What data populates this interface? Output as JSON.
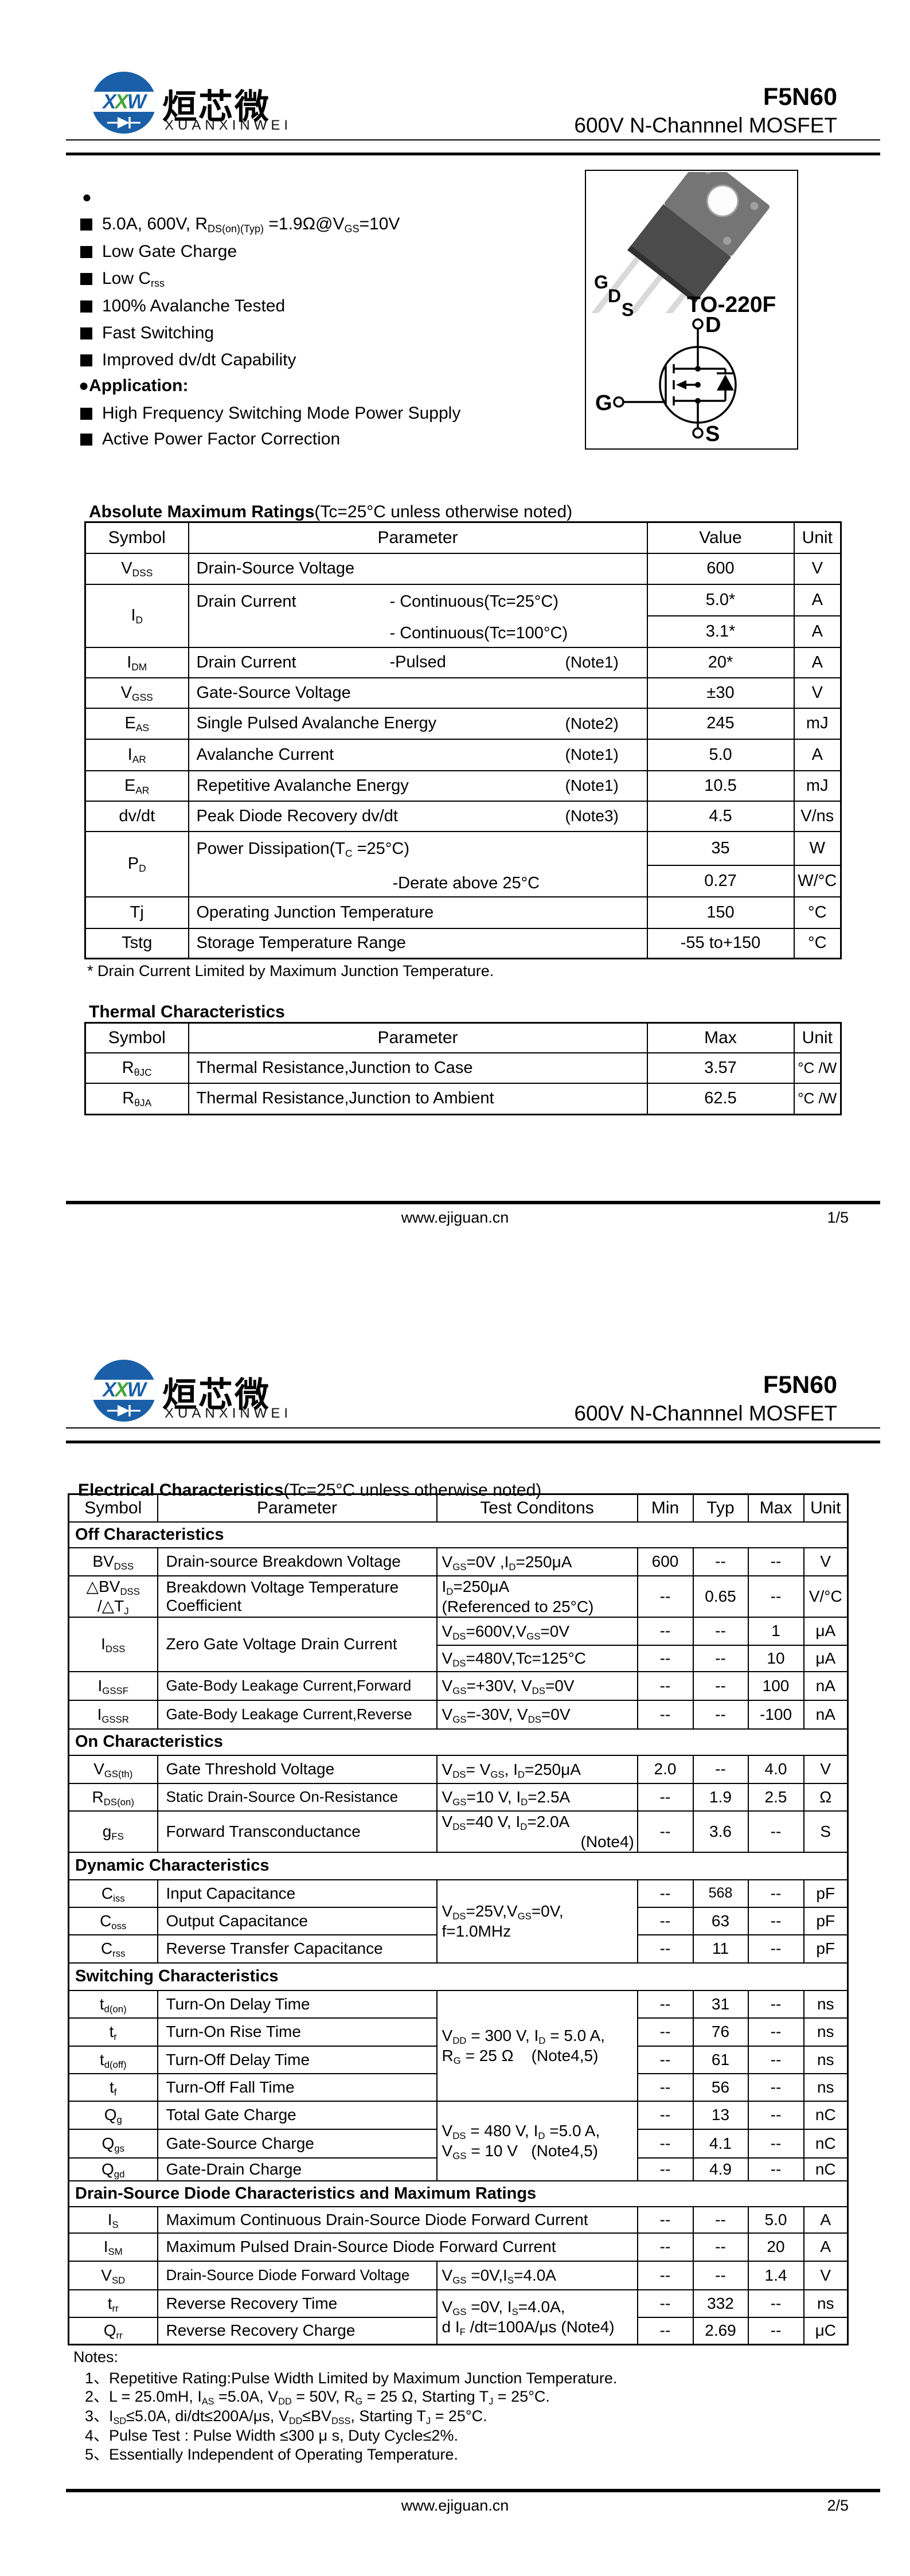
{
  "header": {
    "logo_x1": "X",
    "logo_x2": "X",
    "logo_w": "W",
    "brand_cn": "烜芯微",
    "brand_en": "XUANXINWEI",
    "part_number": "F5N60",
    "subtitle": "600V N-Channnel MOSFET"
  },
  "page1": {
    "features": {
      "lead_bullet": "●",
      "items": [
        "5.0A, 600V, R<sub>DS(on)(Typ)</sub> =1.9Ω@V<sub>GS</sub>=10V",
        "Low Gate Charge",
        "Low C<sub>rss</sub>",
        "100% Avalanche Tested",
        "Fast Switching",
        "Improved dv/dt Capability"
      ],
      "application_label": "●Application:",
      "application_items": [
        "High Frequency Switching Mode Power Supply",
        "Active Power Factor Correction"
      ]
    },
    "package_box": {
      "pin_labels": [
        "G",
        "D",
        "S"
      ],
      "package_name": "TO-220F",
      "symbol": {
        "drain": "D",
        "gate": "G",
        "source": "S"
      }
    },
    "abs_max": {
      "title": "Absolute Maximum Ratings",
      "title_note": "(Tc=25°C unless otherwise noted)",
      "col_headers": [
        "Symbol",
        "Parameter",
        "Value",
        "Unit"
      ],
      "rows": {
        "vdss": {
          "sym": "V<sub>DSS</sub>",
          "param": "Drain-Source Voltage",
          "value": "600",
          "unit": "V"
        },
        "id": {
          "sym": "I<sub>D</sub>",
          "param": "Drain Current",
          "cond1": "- Continuous(Tc=25°C)",
          "cond2": "- Continuous(Tc=100°C)",
          "value1": "5.0*",
          "unit1": "A",
          "value2": "3.1*",
          "unit2": "A"
        },
        "idm": {
          "sym": "I<sub>DM</sub>",
          "param": "Drain Current",
          "cond": "-Pulsed",
          "note": "(Note1)",
          "value": "20*",
          "unit": "A"
        },
        "vgss": {
          "sym": "V<sub>GSS</sub>",
          "param": "Gate-Source Voltage",
          "value": "±30",
          "unit": "V"
        },
        "eas": {
          "sym": "E<sub>AS</sub>",
          "param": "Single Pulsed Avalanche Energy",
          "note": "(Note2)",
          "value": "245",
          "unit": "mJ"
        },
        "iar": {
          "sym": "I<sub>AR</sub>",
          "param": "Avalanche Current",
          "note": "(Note1)",
          "value": "5.0",
          "unit": "A"
        },
        "ear": {
          "sym": "E<sub>AR</sub>",
          "param": "Repetitive Avalanche Energy",
          "note": "(Note1)",
          "value": "10.5",
          "unit": "mJ"
        },
        "dvdt": {
          "sym": "dv/dt",
          "param": "Peak Diode Recovery dv/dt",
          "note": "(Note3)",
          "value": "4.5",
          "unit": "V/ns"
        },
        "pd": {
          "sym": "P<sub>D</sub>",
          "param": "Power Dissipation(T<sub>C</sub> =25°C)",
          "param2": "-Derate above 25°C",
          "value1": "35",
          "unit1": "W",
          "value2": "0.27",
          "unit2": "W/°C"
        },
        "tj": {
          "sym": "Tj",
          "param": "Operating Junction Temperature",
          "value": "150",
          "unit": "°C"
        },
        "tstg": {
          "sym": "Tstg",
          "param": "Storage Temperature Range",
          "value": "-55 to+150",
          "unit": "°C"
        }
      }
    },
    "footnote": "* Drain Current Limited by Maximum Junction Temperature.",
    "thermal": {
      "title": "Thermal Characteristics",
      "col_headers": [
        "Symbol",
        "Parameter",
        "Max",
        "Unit"
      ],
      "rows": {
        "rthjc": {
          "sym": "R<sub>θJC</sub>",
          "param": "Thermal Resistance,Junction to Case",
          "value": "3.57",
          "unit": "°C /W"
        },
        "rthja": {
          "sym": "R<sub>θJA</sub>",
          "param": "Thermal Resistance,Junction to Ambient",
          "value": "62.5",
          "unit": "°C /W"
        }
      }
    },
    "footer": {
      "url": "www.ejiguan.cn",
      "page": "1/5"
    }
  },
  "page2": {
    "electrical": {
      "title": "Electrical Characteristics",
      "title_note": "(Tc=25°C unless otherwise noted)",
      "col_headers": [
        "Symbol",
        "Parameter",
        "Test Conditons",
        "Min",
        "Typ",
        "Max",
        "Unit"
      ],
      "sections": {
        "off": "Off Characteristics",
        "on": "On Characteristics",
        "dynamic": "Dynamic Characteristics",
        "switching": "Switching Characteristics",
        "diode": "Drain-Source Diode Characteristics and Maximum Ratings"
      },
      "rows": {
        "bvdss": {
          "sym": "BV<sub>DSS</sub>",
          "param": "Drain-source Breakdown Voltage",
          "cond": "V<sub>GS</sub>=0V ,I<sub>D</sub>=250μA",
          "min": "600",
          "typ": "--",
          "max": "--",
          "unit": "V"
        },
        "dbvdss": {
          "sym": "△BV<sub>DSS</sub><br>/△T<sub>J</sub>",
          "param": "Breakdown Voltage Temperature<br>Coefficient",
          "cond": "I<sub>D</sub>=250μA<br>(Referenced to 25°C)",
          "min": "--",
          "typ": "0.65",
          "max": "--",
          "unit": "V/°C"
        },
        "idss": {
          "sym": "I<sub>DSS</sub>",
          "param": "Zero Gate Voltage Drain Current",
          "cond1": "V<sub>DS</sub>=600V,V<sub>GS</sub>=0V",
          "min1": "--",
          "typ1": "--",
          "max1": "1",
          "unit1": "μA",
          "cond2": "V<sub>DS</sub>=480V,Tc=125°C",
          "min2": "--",
          "typ2": "--",
          "max2": "10",
          "unit2": "μA"
        },
        "igssf": {
          "sym": "I<sub>GSSF</sub>",
          "param": "Gate-Body Leakage Current,Forward",
          "cond": "V<sub>GS</sub>=+30V, V<sub>DS</sub>=0V",
          "min": "--",
          "typ": "--",
          "max": "100",
          "unit": "nA"
        },
        "igssr": {
          "sym": "I<sub>GSSR</sub>",
          "param": "Gate-Body Leakage Current,Reverse",
          "cond": "V<sub>GS</sub>=-30V, V<sub>DS</sub>=0V",
          "min": "--",
          "typ": "--",
          "max": "-100",
          "unit": "nA"
        },
        "vgsth": {
          "sym": "V<sub>GS(th)</sub>",
          "param": "Gate Threshold Voltage",
          "cond": "V<sub>DS</sub>= V<sub>GS</sub>, I<sub>D</sub>=250μA",
          "min": "2.0",
          "typ": "--",
          "max": "4.0",
          "unit": "V"
        },
        "rdson": {
          "sym": "R<sub>DS(on)</sub>",
          "param": "Static Drain-Source On-Resistance",
          "cond": "V<sub>GS</sub>=10 V, I<sub>D</sub>=2.5A",
          "min": "--",
          "typ": "1.9",
          "max": "2.5",
          "unit": "Ω"
        },
        "gfs": {
          "sym": "g<sub>FS</sub>",
          "param": "Forward Transconductance",
          "cond": "V<sub>DS</sub>=40 V, I<sub>D</sub>=2.0A",
          "cond_note": "(Note4)",
          "min": "--",
          "typ": "3.6",
          "max": "--",
          "unit": "S"
        },
        "cap_cond": "V<sub>DS</sub>=25V,V<sub>GS</sub>=0V,<br>f=1.0MHz",
        "ciss": {
          "sym": "C<sub>iss</sub>",
          "param": "Input Capacitance",
          "min": "--",
          "typ": "568",
          "max": "--",
          "unit": "pF"
        },
        "coss": {
          "sym": "C<sub>oss</sub>",
          "param": "Output Capacitance",
          "min": "--",
          "typ": "63",
          "max": "--",
          "unit": "pF"
        },
        "crss": {
          "sym": "C<sub>rss</sub>",
          "param": "Reverse Transfer Capacitance",
          "min": "--",
          "typ": "11",
          "max": "--",
          "unit": "pF"
        },
        "sw_cond": "V<sub>DD</sub> = 300 V, I<sub>D</sub> = 5.0 A,<br>R<sub>G</sub> = 25 Ω&nbsp;&nbsp;&nbsp;&nbsp;(Note4,5)",
        "tdon": {
          "sym": "t<sub>d(on)</sub>",
          "param": "Turn-On Delay Time",
          "min": "--",
          "typ": "31",
          "max": "--",
          "unit": "ns"
        },
        "tr": {
          "sym": "t<sub>r</sub>",
          "param": "Turn-On Rise Time",
          "min": "--",
          "typ": "76",
          "max": "--",
          "unit": "ns"
        },
        "tdoff": {
          "sym": "t<sub>d(off)</sub>",
          "param": "Turn-Off Delay Time",
          "min": "--",
          "typ": "61",
          "max": "--",
          "unit": "ns"
        },
        "tf": {
          "sym": "t<sub>f</sub>",
          "param": "Turn-Off Fall Time",
          "min": "--",
          "typ": "56",
          "max": "--",
          "unit": "ns"
        },
        "q_cond": "V<sub>DS</sub> = 480 V, I<sub>D</sub> =5.0 A,<br>V<sub>GS</sub> = 10 V&nbsp;&nbsp;&nbsp;(Note4,5)",
        "qg": {
          "sym": "Q<sub>g</sub>",
          "param": "Total Gate Charge",
          "min": "--",
          "typ": "13",
          "max": "--",
          "unit": "nC"
        },
        "qgs": {
          "sym": "Q<sub>gs</sub>",
          "param": "Gate-Source Charge",
          "min": "--",
          "typ": "4.1",
          "max": "--",
          "unit": "nC"
        },
        "qgd": {
          "sym": "Q<sub>gd</sub>",
          "param": "Gate-Drain Charge",
          "min": "--",
          "typ": "4.9",
          "max": "--",
          "unit": "nC"
        },
        "is": {
          "sym": "I<sub>S</sub>",
          "param": "Maximum Continuous Drain-Source Diode Forward Current",
          "min": "--",
          "typ": "--",
          "max": "5.0",
          "unit": "A"
        },
        "ism": {
          "sym": "I<sub>SM</sub>",
          "param": "Maximum Pulsed Drain-Source Diode Forward Current",
          "min": "--",
          "typ": "--",
          "max": "20",
          "unit": "A"
        },
        "vsd": {
          "sym": "V<sub>SD</sub>",
          "param": "Drain-Source Diode Forward Voltage",
          "cond": "V<sub>GS</sub> =0V,I<sub>S</sub>=4.0A",
          "min": "--",
          "typ": "--",
          "max": "1.4",
          "unit": "V"
        },
        "rr_cond": "V<sub>GS</sub> =0V, I<sub>S</sub>=4.0A,<br>d I<sub>F</sub> /dt=100A/μs (Note4)",
        "trr": {
          "sym": "t<sub>rr</sub>",
          "param": "Reverse Recovery Time",
          "min": "--",
          "typ": "332",
          "max": "--",
          "unit": "ns"
        },
        "qrr": {
          "sym": "Q<sub>rr</sub>",
          "param": "Reverse Recovery Charge",
          "min": "--",
          "typ": "2.69",
          "max": "--",
          "unit": "μC"
        }
      }
    },
    "notes": {
      "label": "Notes:",
      "items": [
        "1、Repetitive Rating:Pulse Width Limited by Maximum Junction Temperature.",
        "2、L = 25.0mH, I<sub>AS</sub> =5.0A, V<sub>DD</sub> = 50V, R<sub>G</sub> = 25 Ω, Starting T<sub>J</sub> = 25°C.",
        "3、I<sub>SD</sub>≤5.0A, di/dt≤200A/μs, V<sub>DD</sub>≤BV<sub>DSS</sub>, Starting T<sub>J</sub> = 25°C.",
        "4、Pulse Test : Pulse Width ≤300 μ s, Duty Cycle≤2%.",
        "5、Essentially Independent of Operating Temperature."
      ]
    },
    "footer": {
      "url": "www.ejiguan.cn",
      "page": "2/5"
    }
  }
}
